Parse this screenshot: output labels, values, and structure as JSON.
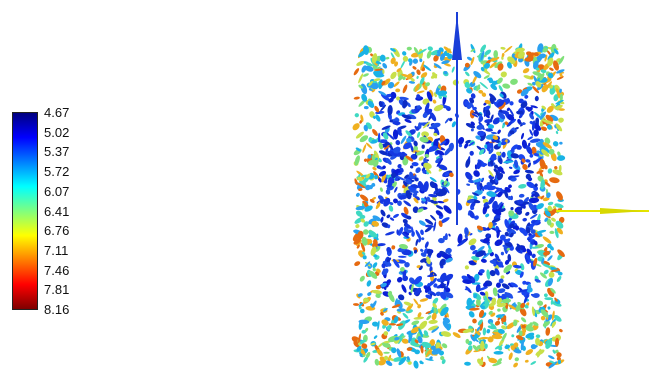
{
  "colorbar": {
    "labels": [
      "4.67",
      "5.02",
      "5.37",
      "5.72",
      "6.07",
      "6.41",
      "6.76",
      "7.11",
      "7.46",
      "7.81",
      "8.16"
    ],
    "colormap": [
      "#00007f",
      "#0000ff",
      "#007fff",
      "#00ffff",
      "#7fff7f",
      "#ffff00",
      "#ff7f00",
      "#ff0000",
      "#7f0000"
    ]
  },
  "scene": {
    "description_icon": "cylinder-isosurface-icon",
    "axis_vertical_color": "#1a3fd8",
    "axis_horizontal_color": "#e6e600"
  }
}
